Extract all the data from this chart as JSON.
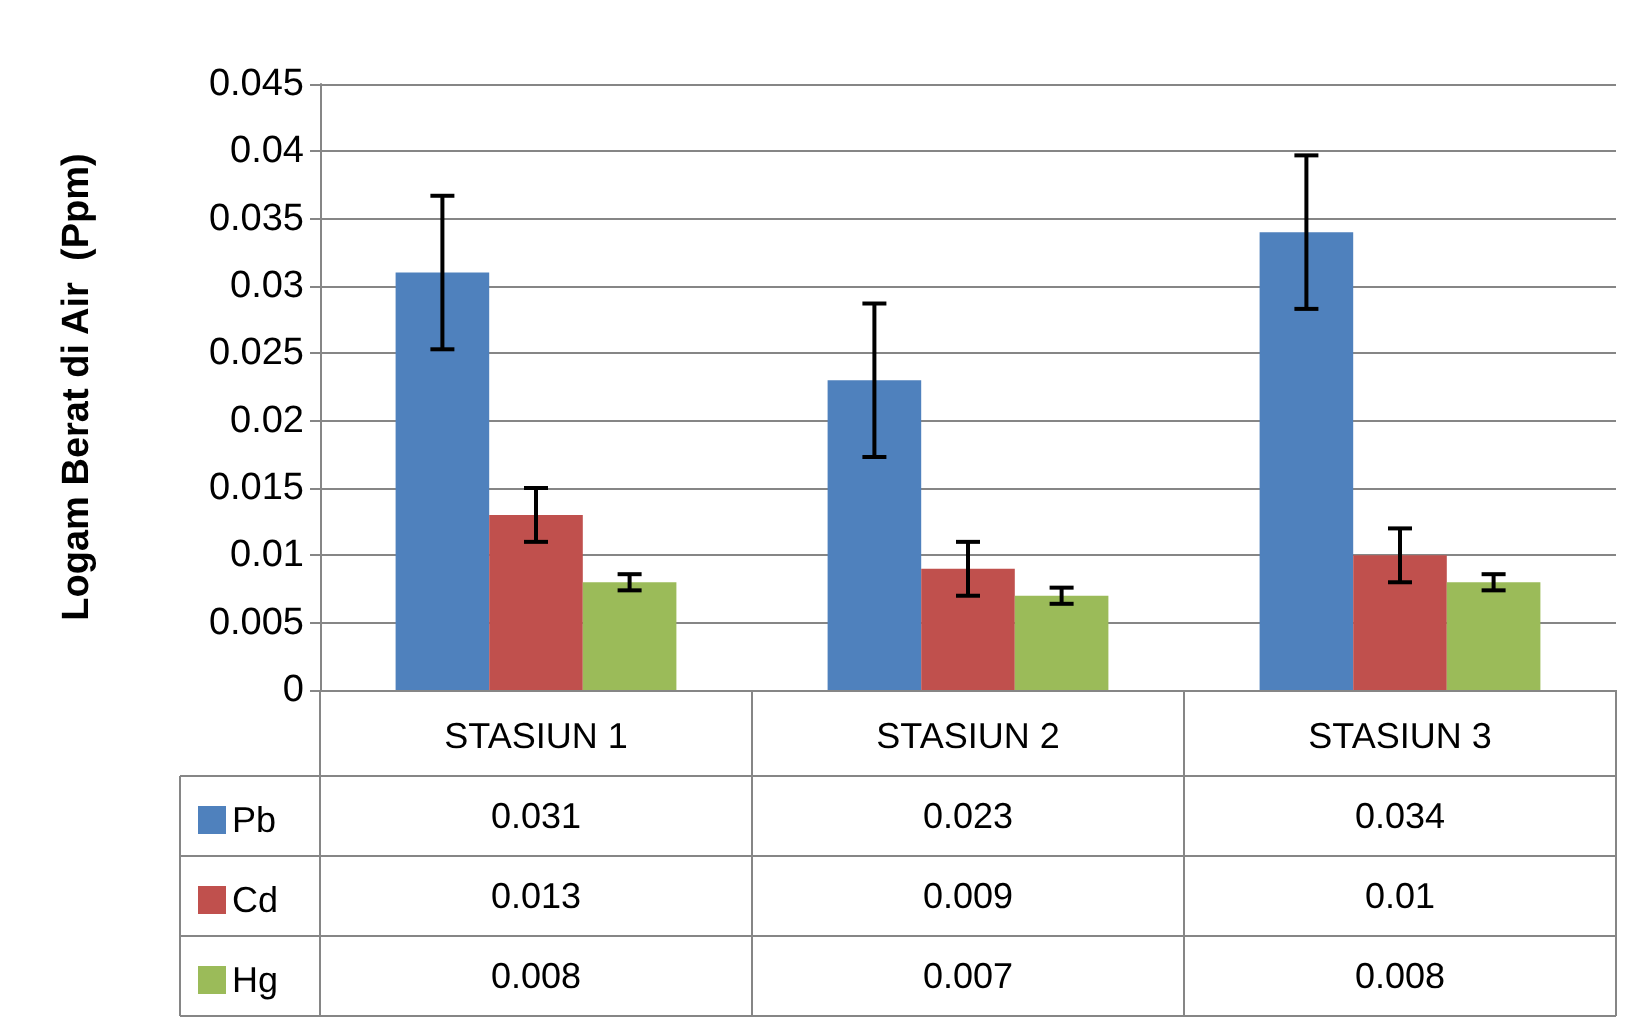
{
  "chart_data": {
    "type": "bar",
    "ylabel": "Logam Berat di Air  (Ppm)",
    "categories": [
      "STASIUN 1",
      "STASIUN 2",
      "STASIUN 3"
    ],
    "series": [
      {
        "name": "Pb",
        "color": "#4f81bd",
        "values": [
          0.031,
          0.023,
          0.034
        ],
        "errors": [
          0.0057,
          0.0057,
          0.0057
        ]
      },
      {
        "name": "Cd",
        "color": "#c0504d",
        "values": [
          0.013,
          0.009,
          0.01
        ],
        "errors": [
          0.002,
          0.002,
          0.002
        ]
      },
      {
        "name": "Hg",
        "color": "#9bbb59",
        "values": [
          0.008,
          0.007,
          0.008
        ],
        "errors": [
          0.0006,
          0.0006,
          0.0006
        ]
      }
    ],
    "ylim": [
      0,
      0.045
    ],
    "yticks": [
      0,
      0.005,
      0.01,
      0.015,
      0.02,
      0.025,
      0.03,
      0.035,
      0.04,
      0.045
    ],
    "grid": "y",
    "legend": "bottom",
    "data_labels": true
  }
}
